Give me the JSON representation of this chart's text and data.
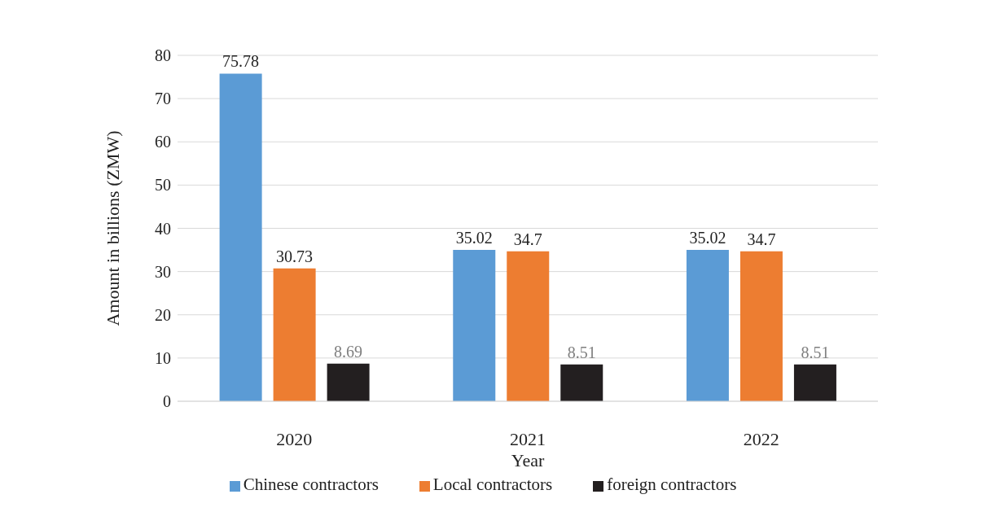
{
  "chart_data": {
    "type": "bar",
    "xlabel": "Year",
    "ylabel": "Amount in billions (ZMW)",
    "categories": [
      "2020",
      "2021",
      "2022"
    ],
    "series": [
      {
        "name": "Chinese contractors",
        "color": "#5b9bd5",
        "values": [
          75.78,
          35.02,
          35.02
        ]
      },
      {
        "name": "Local contractors",
        "color": "#ed7d31",
        "values": [
          30.73,
          34.7,
          34.7
        ]
      },
      {
        "name": "foreign contractors",
        "color": "#231f20",
        "values": [
          8.69,
          8.51,
          8.51
        ]
      }
    ],
    "ylim": [
      0,
      80
    ],
    "yticks": [
      0,
      10,
      20,
      30,
      40,
      50,
      60,
      70,
      80
    ],
    "grid": "y",
    "legend": "bottom",
    "data_labels": true
  }
}
